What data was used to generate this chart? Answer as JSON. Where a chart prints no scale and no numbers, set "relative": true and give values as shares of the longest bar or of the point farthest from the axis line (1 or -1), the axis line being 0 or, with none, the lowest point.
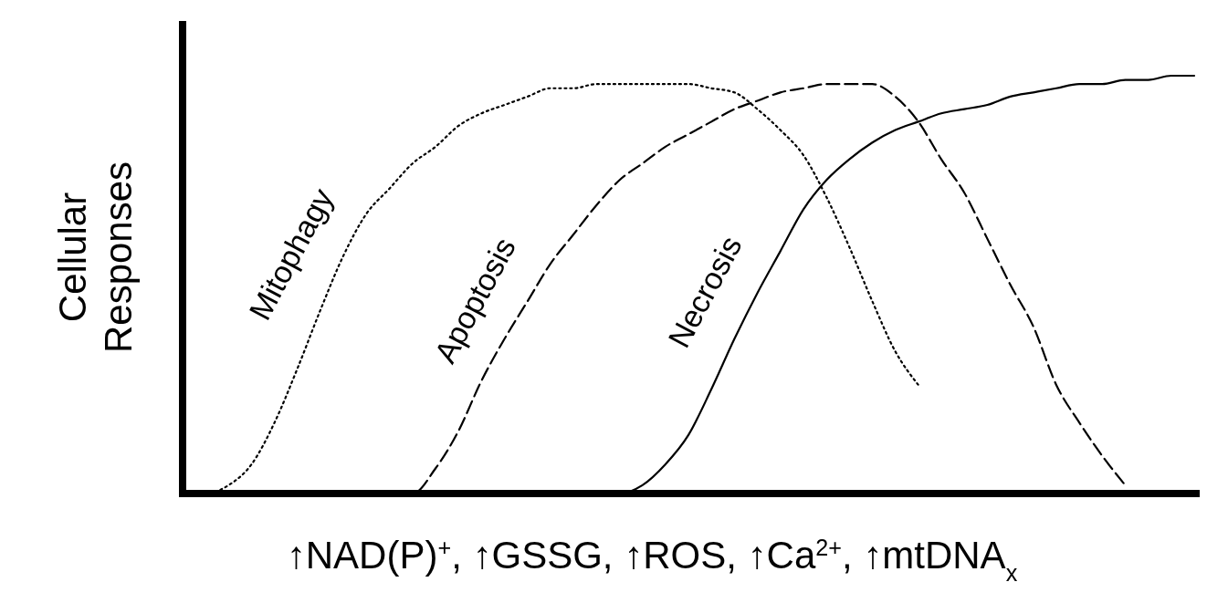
{
  "chart_data": {
    "type": "line",
    "relative": true,
    "xlabel": "↑NAD(P)$^{+}$, ↑GSSG, ↑ROS, ↑Ca$^{2+}$, ↑mtDNA$_{x}$",
    "ylabel": "Cellular Responses",
    "categories": [
      null,
      null,
      null,
      null,
      null,
      null,
      null,
      null,
      null,
      null,
      null,
      null,
      null,
      null,
      null,
      null,
      null,
      null,
      null,
      null,
      null,
      null,
      null,
      null,
      null,
      null,
      null,
      null,
      null,
      null,
      null,
      null,
      null,
      null,
      null,
      null,
      null,
      null,
      null,
      null,
      null,
      null,
      null,
      null,
      null
    ],
    "series": [
      {
        "name": "Mitophagy",
        "color": "#000000",
        "line_style": "dotted",
        "values": [
          0,
          0,
          0.02,
          0.07,
          0.17,
          0.3,
          0.44,
          0.57,
          0.67,
          0.73,
          0.79,
          0.83,
          0.88,
          0.91,
          0.93,
          0.95,
          0.97,
          0.97,
          0.98,
          0.98,
          0.98,
          0.98,
          0.98,
          0.97,
          0.96,
          0.92,
          0.87,
          0.81,
          0.71,
          0.59,
          0.46,
          0.34,
          0.26,
          null,
          null,
          null,
          null,
          null,
          null,
          null,
          null,
          null,
          null,
          null,
          null
        ]
      },
      {
        "name": "Apoptosis",
        "color": "#000000",
        "line_style": "dashed",
        "values": [
          0,
          0,
          0,
          0,
          0,
          0,
          0,
          0,
          0,
          0,
          0,
          0.06,
          0.15,
          0.27,
          0.37,
          0.46,
          0.55,
          0.62,
          0.69,
          0.75,
          0.79,
          0.83,
          0.86,
          0.89,
          0.92,
          0.94,
          0.96,
          0.97,
          0.98,
          0.98,
          0.98,
          0.95,
          0.89,
          0.8,
          0.72,
          0.61,
          0.5,
          0.4,
          0.26,
          0.17,
          0.09,
          0.02,
          null,
          null,
          null
        ]
      },
      {
        "name": "Necrosis",
        "color": "#000000",
        "line_style": "solid",
        "values": [
          0,
          0,
          0,
          0,
          0,
          0,
          0,
          0,
          0,
          0,
          0,
          0,
          0,
          0,
          0,
          0,
          0,
          0,
          0,
          0,
          0.02,
          0.07,
          0.14,
          0.25,
          0.37,
          0.48,
          0.58,
          0.68,
          0.75,
          0.8,
          0.84,
          0.87,
          0.89,
          0.91,
          0.92,
          0.93,
          0.95,
          0.96,
          0.97,
          0.98,
          0.98,
          0.99,
          0.99,
          1.0,
          1.0
        ]
      }
    ]
  }
}
